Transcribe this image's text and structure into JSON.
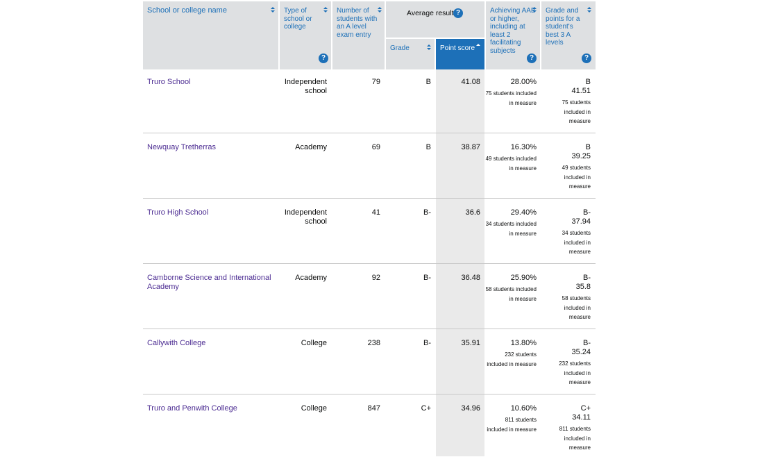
{
  "headers": {
    "school_name": "School or college name",
    "type": "Type of school or college",
    "students": "Number of students with an A level exam entry",
    "average_result": "Average result",
    "grade": "Grade",
    "point_score": "Point score",
    "aab": "Achieving AAB or higher, including at least 2 facilitating subjects",
    "best3": "Grade and points for a student's best 3 A levels"
  },
  "rows": [
    {
      "name": "Truro School",
      "type": "Independent school",
      "students": "79",
      "grade": "B",
      "points": "41.08",
      "aab_pct": "28.00%",
      "aab_note": "75 students included in measure",
      "best_grade": "B",
      "best_points": "41.51",
      "best_note": "75 students included in measure"
    },
    {
      "name": "Newquay Tretherras",
      "type": "Academy",
      "students": "69",
      "grade": "B",
      "points": "38.87",
      "aab_pct": "16.30%",
      "aab_note": "49 students included in measure",
      "best_grade": "B",
      "best_points": "39.25",
      "best_note": "49 students included in measure"
    },
    {
      "name": "Truro High School",
      "type": "Independent school",
      "students": "41",
      "grade": "B-",
      "points": "36.6",
      "aab_pct": "29.40%",
      "aab_note": "34 students included in measure",
      "best_grade": "B-",
      "best_points": "37.94",
      "best_note": "34 students included in measure"
    },
    {
      "name": "Camborne Science and International Academy",
      "type": "Academy",
      "students": "92",
      "grade": "B-",
      "points": "36.48",
      "aab_pct": "25.90%",
      "aab_note": "58 students included in measure",
      "best_grade": "B-",
      "best_points": "35.8",
      "best_note": "58 students included in measure"
    },
    {
      "name": "Callywith College",
      "type": "College",
      "students": "238",
      "grade": "B-",
      "points": "35.91",
      "aab_pct": "13.80%",
      "aab_note": "232 students included in measure",
      "best_grade": "B-",
      "best_points": "35.24",
      "best_note": "232 students included in measure"
    },
    {
      "name": "Truro and Penwith College",
      "type": "College",
      "students": "847",
      "grade": "C+",
      "points": "34.96",
      "aab_pct": "10.60%",
      "aab_note": "811 students included in measure",
      "best_grade": "C+",
      "best_points": "34.11",
      "best_note": "811 students included in measure"
    }
  ],
  "colors": {
    "link": "#1d70b8",
    "school_link": "#4c2c92",
    "header_bg": "#dee0e2",
    "sorted_header_bg": "#1d70b8",
    "sorted_column_bg": "#eaeaea"
  },
  "icons": {
    "help": "question-circle-icon",
    "sort": "sort-arrows-icon",
    "sort_active": "sort-ascending-icon"
  }
}
